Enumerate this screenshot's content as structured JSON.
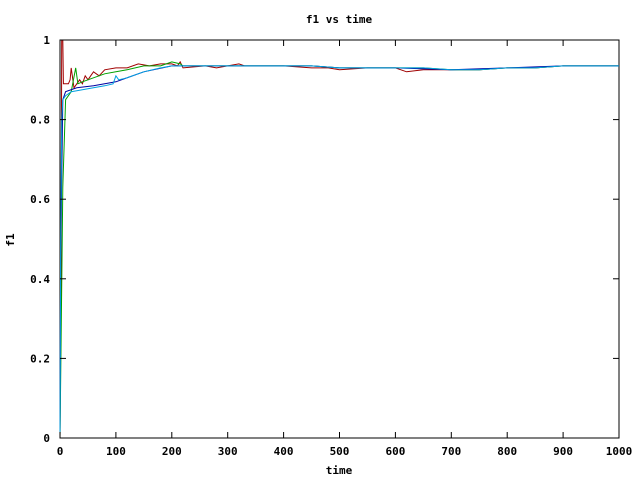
{
  "chart_data": {
    "type": "line",
    "title": "f1 vs time",
    "xlabel": "time",
    "ylabel": "f1",
    "xlim": [
      0,
      1000
    ],
    "ylim": [
      0,
      1
    ],
    "xticks": [
      "0",
      "100",
      "200",
      "300",
      "400",
      "500",
      "600",
      "700",
      "800",
      "900",
      "1000"
    ],
    "yticks": [
      "0",
      "0.2",
      "0.4",
      "0.6",
      "0.8",
      "1"
    ],
    "grid": false,
    "legend": "none",
    "series": [
      {
        "color": "#a00000",
        "points": [
          [
            0,
            0
          ],
          [
            2,
            0.42
          ],
          [
            3,
            1
          ],
          [
            5,
            1
          ],
          [
            6,
            0.89
          ],
          [
            15,
            0.89
          ],
          [
            18,
            0.9
          ],
          [
            20,
            0.93
          ],
          [
            25,
            0.88
          ],
          [
            30,
            0.89
          ],
          [
            35,
            0.9
          ],
          [
            40,
            0.89
          ],
          [
            45,
            0.91
          ],
          [
            50,
            0.9
          ],
          [
            55,
            0.91
          ],
          [
            60,
            0.92
          ],
          [
            70,
            0.91
          ],
          [
            80,
            0.925
          ],
          [
            100,
            0.93
          ],
          [
            120,
            0.93
          ],
          [
            140,
            0.94
          ],
          [
            160,
            0.935
          ],
          [
            180,
            0.94
          ],
          [
            200,
            0.94
          ],
          [
            210,
            0.935
          ],
          [
            215,
            0.945
          ],
          [
            220,
            0.93
          ],
          [
            260,
            0.935
          ],
          [
            280,
            0.93
          ],
          [
            320,
            0.94
          ],
          [
            330,
            0.935
          ],
          [
            400,
            0.935
          ],
          [
            450,
            0.93
          ],
          [
            480,
            0.93
          ],
          [
            500,
            0.925
          ],
          [
            550,
            0.93
          ],
          [
            600,
            0.93
          ],
          [
            620,
            0.92
          ],
          [
            650,
            0.925
          ],
          [
            700,
            0.925
          ],
          [
            750,
            0.925
          ],
          [
            800,
            0.93
          ],
          [
            850,
            0.93
          ],
          [
            900,
            0.935
          ],
          [
            1000,
            0.935
          ]
        ]
      },
      {
        "color": "#00a000",
        "points": [
          [
            0,
            0
          ],
          [
            5,
            0.63
          ],
          [
            10,
            0.85
          ],
          [
            20,
            0.87
          ],
          [
            28,
            0.93
          ],
          [
            32,
            0.89
          ],
          [
            40,
            0.895
          ],
          [
            50,
            0.9
          ],
          [
            60,
            0.905
          ],
          [
            80,
            0.915
          ],
          [
            100,
            0.92
          ],
          [
            120,
            0.925
          ],
          [
            150,
            0.935
          ],
          [
            180,
            0.935
          ],
          [
            200,
            0.945
          ],
          [
            215,
            0.94
          ],
          [
            220,
            0.935
          ],
          [
            260,
            0.935
          ],
          [
            300,
            0.935
          ],
          [
            350,
            0.935
          ],
          [
            400,
            0.935
          ],
          [
            450,
            0.935
          ],
          [
            500,
            0.93
          ],
          [
            550,
            0.93
          ],
          [
            600,
            0.93
          ],
          [
            650,
            0.93
          ],
          [
            700,
            0.925
          ],
          [
            750,
            0.925
          ],
          [
            800,
            0.93
          ],
          [
            850,
            0.93
          ],
          [
            900,
            0.935
          ],
          [
            1000,
            0.935
          ]
        ]
      },
      {
        "color": "#0000a0",
        "points": [
          [
            0,
            0
          ],
          [
            1,
            0.45
          ],
          [
            5,
            0.85
          ],
          [
            10,
            0.87
          ],
          [
            30,
            0.88
          ],
          [
            60,
            0.885
          ],
          [
            100,
            0.895
          ],
          [
            150,
            0.92
          ],
          [
            200,
            0.935
          ],
          [
            250,
            0.935
          ],
          [
            300,
            0.935
          ],
          [
            350,
            0.935
          ],
          [
            400,
            0.935
          ],
          [
            450,
            0.935
          ],
          [
            500,
            0.93
          ],
          [
            600,
            0.93
          ],
          [
            700,
            0.925
          ],
          [
            800,
            0.93
          ],
          [
            900,
            0.935
          ],
          [
            1000,
            0.935
          ]
        ]
      },
      {
        "color": "#00a0e0",
        "points": [
          [
            0,
            0
          ],
          [
            1,
            0.45
          ],
          [
            3,
            0.8
          ],
          [
            5,
            0.85
          ],
          [
            10,
            0.86
          ],
          [
            20,
            0.87
          ],
          [
            40,
            0.875
          ],
          [
            60,
            0.88
          ],
          [
            80,
            0.885
          ],
          [
            95,
            0.89
          ],
          [
            100,
            0.91
          ],
          [
            105,
            0.9
          ],
          [
            120,
            0.905
          ],
          [
            150,
            0.92
          ],
          [
            180,
            0.93
          ],
          [
            200,
            0.935
          ],
          [
            220,
            0.935
          ],
          [
            260,
            0.935
          ],
          [
            300,
            0.935
          ],
          [
            350,
            0.935
          ],
          [
            400,
            0.935
          ],
          [
            450,
            0.935
          ],
          [
            500,
            0.93
          ],
          [
            550,
            0.93
          ],
          [
            600,
            0.93
          ],
          [
            650,
            0.93
          ],
          [
            700,
            0.925
          ],
          [
            750,
            0.925
          ],
          [
            800,
            0.93
          ],
          [
            850,
            0.93
          ],
          [
            900,
            0.935
          ],
          [
            1000,
            0.935
          ]
        ]
      }
    ]
  }
}
